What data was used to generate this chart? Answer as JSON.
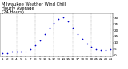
{
  "title": "Milwaukee Weather Wind Chill",
  "subtitle1": "Hourly Average",
  "subtitle2": "(24 Hours)",
  "background_color": "#ffffff",
  "plot_bg_color": "#ffffff",
  "grid_color": "#888888",
  "dot_color": "#0000cc",
  "hours": [
    1,
    2,
    3,
    4,
    5,
    6,
    7,
    8,
    9,
    10,
    11,
    12,
    13,
    14,
    15,
    16,
    17,
    18,
    19,
    20,
    21,
    22,
    23,
    24
  ],
  "wind_chill": [
    2,
    2,
    3,
    3,
    3,
    3,
    5,
    8,
    12,
    17,
    22,
    26,
    29,
    30,
    27,
    22,
    17,
    13,
    9,
    7,
    5,
    4,
    4,
    5
  ],
  "ylim": [
    -1,
    33
  ],
  "xlim": [
    0.5,
    24.5
  ],
  "yticks": [
    0,
    5,
    10,
    15,
    20,
    25,
    30
  ],
  "ytick_labels": [
    "0",
    "5",
    "10",
    "15",
    "20",
    "25",
    "30"
  ],
  "xticks": [
    1,
    2,
    3,
    4,
    5,
    6,
    7,
    8,
    9,
    10,
    11,
    12,
    13,
    14,
    15,
    16,
    17,
    18,
    19,
    20,
    21,
    22,
    23,
    24
  ],
  "xtick_labels": [
    "1",
    "2",
    "3",
    "4",
    "5",
    "6",
    "7",
    "8",
    "9",
    "10",
    "11",
    "12",
    "13",
    "14",
    "15",
    "16",
    "17",
    "18",
    "19",
    "20",
    "21",
    "22",
    "23",
    "24"
  ],
  "vgrid_positions": [
    4,
    8,
    12,
    16,
    20,
    24
  ],
  "title_fontsize": 3.8,
  "tick_fontsize": 3.0,
  "dot_size": 1.5
}
